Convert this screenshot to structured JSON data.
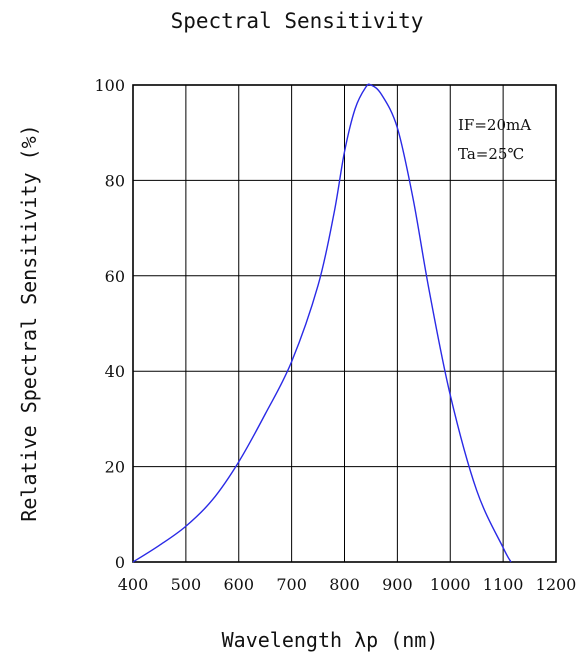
{
  "chart_data": {
    "type": "line",
    "title": "Spectral Sensitivity",
    "xlabel": "Wavelength λp (nm)",
    "ylabel": "Relative Spectral Sensitivity (%)",
    "xlim": [
      400,
      1200
    ],
    "ylim": [
      0,
      100
    ],
    "x_ticks": [
      400,
      500,
      600,
      700,
      800,
      900,
      1000,
      1100,
      1200
    ],
    "y_ticks": [
      0,
      20,
      40,
      60,
      80,
      100
    ],
    "x_tick_labels": [
      "400",
      "500",
      "600",
      "700",
      "800",
      "900",
      "1000",
      "1100",
      "1200"
    ],
    "y_tick_labels": [
      "0",
      "20",
      "40",
      "60",
      "80",
      "100"
    ],
    "grid": true,
    "annotations": [
      "IF=20mA",
      "Ta=25℃"
    ],
    "series": [
      {
        "color": "#2a2ae6",
        "x": [
          400,
          450,
          500,
          550,
          600,
          650,
          700,
          750,
          780,
          800,
          820,
          840,
          850,
          870,
          900,
          930,
          960,
          1000,
          1050,
          1100,
          1115
        ],
        "y": [
          0,
          3.5,
          7.5,
          13,
          21,
          31,
          42,
          58,
          73,
          86,
          95,
          99.5,
          100,
          98,
          91,
          76,
          57,
          35,
          15,
          3,
          0
        ]
      }
    ]
  }
}
